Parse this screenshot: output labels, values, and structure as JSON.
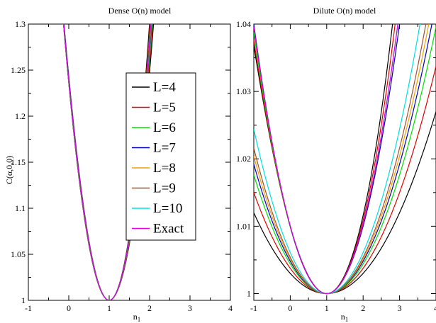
{
  "colors": {
    "L=4": "#000000",
    "L=5": "#e00000",
    "L=6": "#00e000",
    "L=7": "#0000c0",
    "L=8": "#f0a000",
    "L=9": "#a05030",
    "L=10": "#00e0e0",
    "Exact": "#e000e0"
  },
  "chart_data": [
    {
      "type": "line",
      "title": "Dense O(n) model",
      "xlabel": "n",
      "xlabel_sub": "1",
      "ylabel": "C(α,0,0)",
      "xlim": [
        -1,
        4
      ],
      "ylim": [
        1,
        1.3
      ],
      "xticks": [
        "-1",
        "0",
        "1",
        "2",
        "3",
        "4"
      ],
      "yticks": [
        "1",
        "1.05",
        "1.1",
        "1.15",
        "1.2",
        "1.25",
        "1.3"
      ],
      "legend": [
        "L=4",
        "L=5",
        "L=6",
        "L=7",
        "L=8",
        "L=9",
        "L=10",
        "Exact"
      ],
      "legend_position": "upper-right",
      "series": [
        {
          "name": "L=4",
          "curves": [
            {
              "a": 0.242,
              "b": 0.0062
            },
            {
              "a": 0.272,
              "b": 0.0292
            }
          ]
        },
        {
          "name": "L=5",
          "curves": [
            {
              "a": 0.246,
              "b": 0.0102
            },
            {
              "a": 0.268,
              "b": 0.0256
            }
          ]
        },
        {
          "name": "L=6",
          "curves": [
            {
              "a": 0.25,
              "b": 0.0138
            },
            {
              "a": 0.264,
              "b": 0.0226
            }
          ]
        },
        {
          "name": "L=7",
          "curves": [
            {
              "a": 0.254,
              "b": 0.0168
            },
            {
              "a": 0.262,
              "b": 0.0204
            }
          ]
        },
        {
          "name": "L=8",
          "curves": [
            {
              "a": 0.256,
              "b": 0.0188
            }
          ]
        },
        {
          "name": "L=9",
          "curves": [
            {
              "a": 0.258,
              "b": 0.0198
            }
          ]
        },
        {
          "name": "L=10",
          "curves": [
            {
              "a": 0.259,
              "b": 0.0205
            }
          ]
        },
        {
          "name": "Exact",
          "curves": [
            {
              "a": 0.26,
              "b": 0.021
            }
          ]
        }
      ]
    },
    {
      "type": "line",
      "title": "Dilute O(n) model",
      "xlabel": "n",
      "xlabel_sub": "1",
      "ylabel": "",
      "xlim": [
        -1,
        4
      ],
      "ylim": [
        0.999,
        1.04
      ],
      "xticks": [
        "-1",
        "0",
        "1",
        "2",
        "3",
        "4"
      ],
      "yticks": [
        "1",
        "1.01",
        "1.02",
        "1.03",
        "1.04"
      ],
      "series": [
        {
          "name": "L=4",
          "curves": [
            {
              "a": 0.003,
              "b": -0.0,
              "span": "lower"
            },
            {
              "a": 0.0108,
              "b": 0.0008,
              "span": "upper"
            }
          ]
        },
        {
          "name": "L=5",
          "curves": [
            {
              "a": 0.00375,
              "b": 0.0,
              "span": "lower"
            },
            {
              "a": 0.0104,
              "b": 0.0005,
              "span": "upper"
            }
          ]
        },
        {
          "name": "L=6",
          "curves": [
            {
              "a": 0.0044,
              "b": 0.0,
              "span": "lower"
            },
            {
              "a": 0.0101,
              "b": 0.0002,
              "span": "upper"
            }
          ]
        },
        {
          "name": "L=7",
          "curves": [
            {
              "a": 0.0048,
              "b": 0.0,
              "span": "lower"
            },
            {
              "a": 0.01,
              "b": 0.0,
              "span": "upper"
            }
          ]
        },
        {
          "name": "L=8",
          "curves": [
            {
              "a": 0.0051,
              "b": 0.0
            }
          ]
        },
        {
          "name": "L=9",
          "curves": [
            {
              "a": 0.0054,
              "b": 0.0
            }
          ]
        },
        {
          "name": "L=10",
          "curves": [
            {
              "a": 0.0061,
              "b": 0.0
            }
          ]
        },
        {
          "name": "Exact",
          "curves": [
            {
              "a": 0.0102,
              "b": 0.00015
            }
          ]
        }
      ]
    }
  ]
}
